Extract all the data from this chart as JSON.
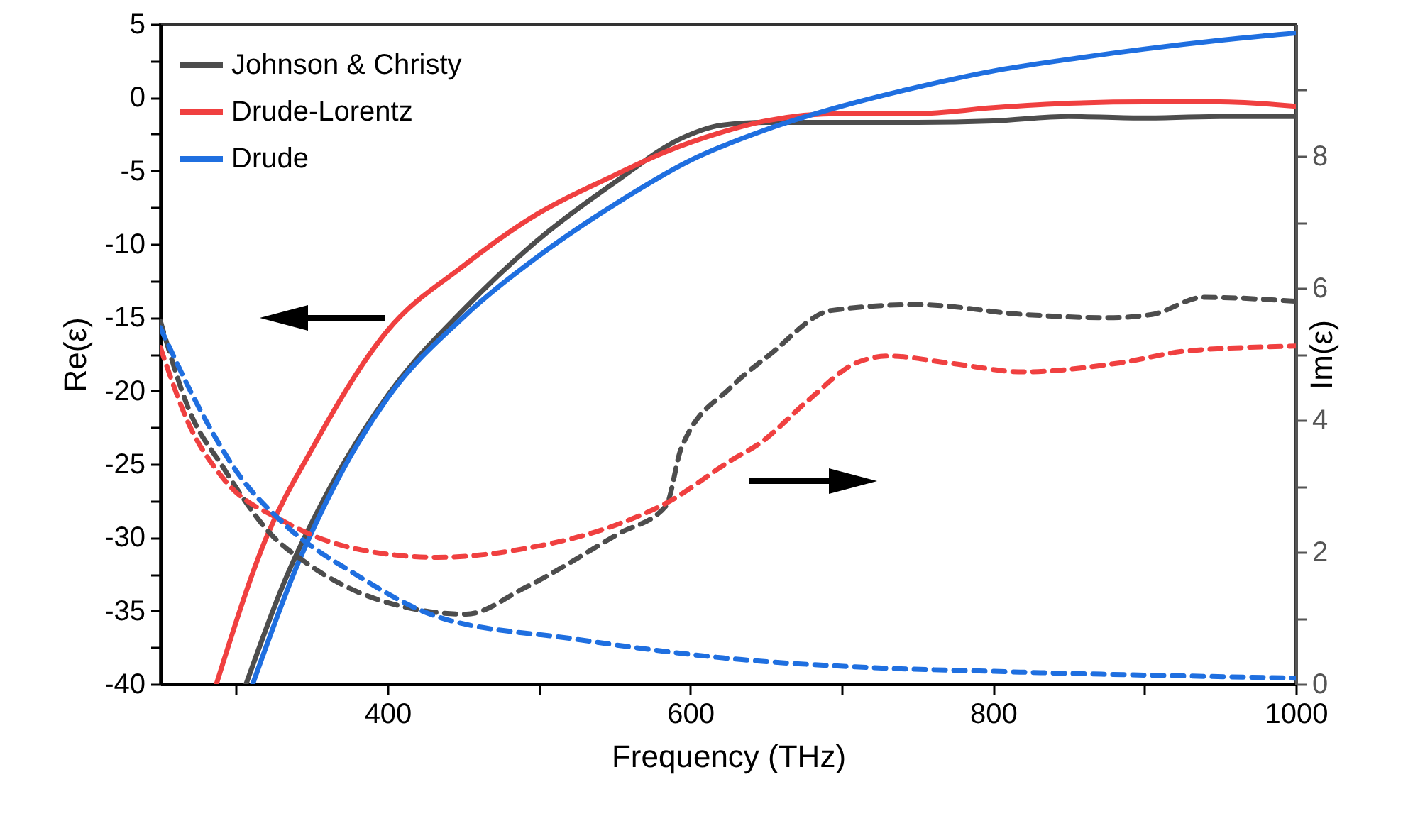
{
  "chart_data": {
    "type": "line",
    "xlabel": "Frequency (THz)",
    "ylabel": "Re(ε)",
    "y2label": "Im(ε)",
    "xlim": [
      250,
      1000
    ],
    "xticks": [
      {
        "value": 300,
        "label": null
      },
      400,
      {
        "value": 500,
        "label": null
      },
      600,
      {
        "value": 700,
        "label": null
      },
      800,
      {
        "value": 900,
        "label": null
      },
      1000
    ],
    "ylim": [
      -40,
      5
    ],
    "yticks": [
      -40,
      {
        "value": -37.5,
        "label": null
      },
      -35,
      {
        "value": -32.5,
        "label": null
      },
      -30,
      {
        "value": -27.5,
        "label": null
      },
      -25,
      {
        "value": -22.5,
        "label": null
      },
      -20,
      {
        "value": -17.5,
        "label": null
      },
      -15,
      {
        "value": -12.5,
        "label": null
      },
      -10,
      {
        "value": -7.5,
        "label": null
      },
      -5,
      {
        "value": -2.5,
        "label": null
      },
      0,
      {
        "value": 2.5,
        "label": null
      },
      5
    ],
    "y2lim": [
      0,
      10
    ],
    "y2ticks": [
      0,
      {
        "value": 1,
        "label": null
      },
      2,
      {
        "value": 3,
        "label": null
      },
      4,
      {
        "value": 5,
        "label": null
      },
      6,
      {
        "value": 7,
        "label": null
      },
      8,
      {
        "value": 9,
        "label": null
      }
    ],
    "legend": "top left",
    "grid": false,
    "marker": "none",
    "series": [
      {
        "name": "Johnson & Christy",
        "color": "#4d4d4d",
        "line_style": "solid",
        "x": [
          306.6,
          332,
          360,
          401,
          450,
          495,
          550,
          596,
          620,
          650,
          700,
          750,
          800,
          850,
          900,
          950,
          1000
        ],
        "values": [
          -40,
          -33,
          -27,
          -20.2,
          -14.5,
          -10.1,
          -5.8,
          -2.7,
          -1.9,
          -1.7,
          -1.7,
          -1.7,
          -1.6,
          -1.3,
          -1.4,
          -1.3,
          -1.3
        ]
      },
      {
        "name": "Drude-Lorentz",
        "color": "#f04040",
        "line_style": "solid",
        "x": [
          287,
          320,
          350,
          400,
          450,
          495,
          550,
          584,
          620,
          650,
          700,
          750,
          800,
          850,
          900,
          950,
          1000
        ],
        "values": [
          -40,
          -30,
          -24,
          -15.9,
          -11.5,
          -8.2,
          -5.3,
          -3.7,
          -2.4,
          -1.6,
          -1.1,
          -1.1,
          -0.7,
          -0.4,
          -0.3,
          -0.3,
          -0.6
        ]
      },
      {
        "name": "Drude",
        "color": "#1f6fe0",
        "line_style": "solid",
        "x": [
          311,
          340,
          370,
          400,
          450,
          500,
          550,
          600,
          650,
          700,
          750,
          800,
          850,
          900,
          950,
          1000
        ],
        "values": [
          -40,
          -32,
          -25.5,
          -20.5,
          -15,
          -10.8,
          -7.3,
          -4.3,
          -2.2,
          -0.6,
          0.7,
          1.8,
          2.6,
          3.3,
          3.9,
          4.4
        ]
      },
      {
        "color": "#4d4d4d",
        "line_style": "dashed",
        "axis": "y2",
        "x": [
          250,
          269,
          291,
          323,
          348,
          395,
          452,
          490,
          552,
          584,
          594,
          627,
          653,
          693,
          750,
          820,
          876,
          905,
          939,
          1000
        ],
        "values": [
          5.5,
          4.15,
          3.3,
          2.27,
          1.81,
          1.27,
          1.06,
          1.45,
          2.27,
          2.7,
          3.57,
          4.5,
          5.0,
          5.66,
          5.75,
          5.6,
          5.55,
          5.6,
          5.86,
          5.8
        ]
      },
      {
        "color": "#f04040",
        "line_style": "dashed",
        "axis": "y2",
        "x": [
          250,
          269,
          291,
          332,
          379,
          433,
          490,
          552,
          584,
          627,
          646,
          678,
          709,
          731,
          772,
          820,
          882,
          929,
          1000
        ],
        "values": [
          5.1,
          3.93,
          3.13,
          2.46,
          2.05,
          1.92,
          2.05,
          2.42,
          2.74,
          3.39,
          3.65,
          4.3,
          4.86,
          4.97,
          4.86,
          4.73,
          4.86,
          5.05,
          5.12
        ]
      },
      {
        "color": "#1f6fe0",
        "line_style": "dashed",
        "axis": "y2",
        "x": [
          250,
          278,
          301,
          332,
          379,
          433,
          521,
          634,
          709,
          804,
          1000
        ],
        "values": [
          5.4,
          4.08,
          3.2,
          2.42,
          1.66,
          1.02,
          0.69,
          0.37,
          0.26,
          0.19,
          0.09
        ]
      }
    ]
  }
}
